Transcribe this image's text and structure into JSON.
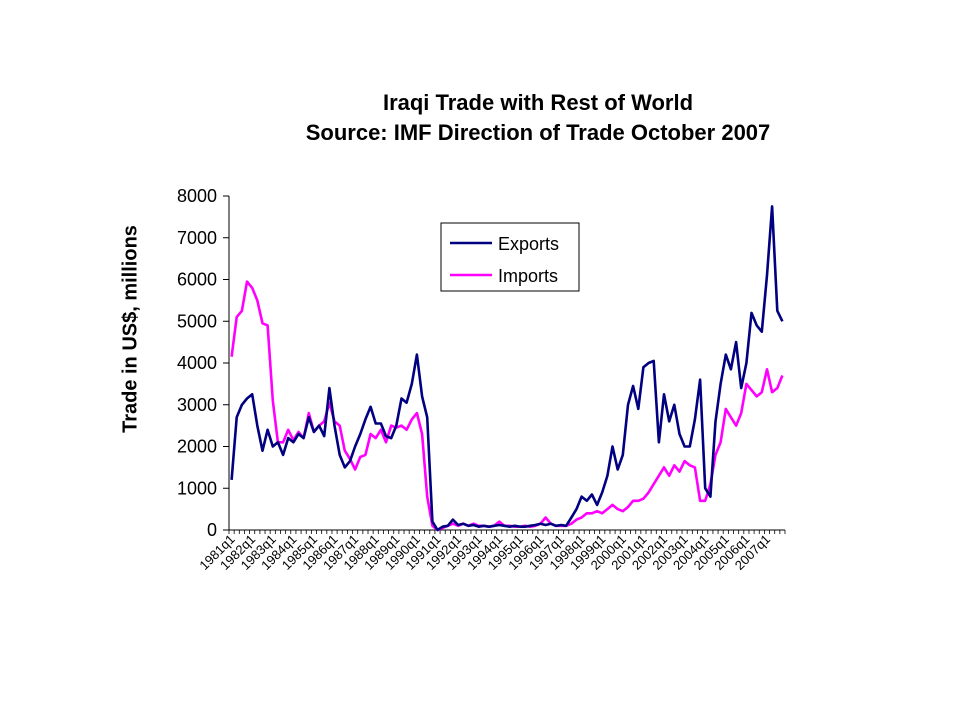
{
  "chart_data": {
    "type": "line",
    "title": "Iraqi Trade with Rest of World",
    "subtitle": "Source: IMF Direction of Trade October 2007",
    "xlabel": "",
    "ylabel": "Trade in US$, millions",
    "ylim": [
      0,
      8000
    ],
    "yticks": [
      0,
      1000,
      2000,
      3000,
      4000,
      5000,
      6000,
      7000,
      8000
    ],
    "xtick_labels": [
      "1981q1",
      "1982q1",
      "1983q1",
      "1984q1",
      "1985q1",
      "1986q1",
      "1987q1",
      "1988q1",
      "1989q1",
      "1990q1",
      "1991q1",
      "1992q1",
      "1993q1",
      "1994q1",
      "1995q1",
      "1996q1",
      "1997q1",
      "1998q1",
      "1999q1",
      "2000q1",
      "2001q1",
      "2002q1",
      "2003q1",
      "2004q1",
      "2005q1",
      "2006q1",
      "2007q1"
    ],
    "legend_position": "top-right inside plot",
    "grid": false,
    "series": [
      {
        "name": "Exports",
        "color": "#000080",
        "values": [
          1200,
          2700,
          3000,
          3150,
          3250,
          2500,
          1900,
          2400,
          2000,
          2100,
          1800,
          2200,
          2100,
          2300,
          2200,
          2700,
          2350,
          2500,
          2250,
          3400,
          2500,
          1800,
          1500,
          1650,
          2000,
          2300,
          2650,
          2950,
          2550,
          2550,
          2250,
          2200,
          2500,
          3150,
          3050,
          3500,
          4200,
          3200,
          2700,
          200,
          0,
          80,
          100,
          250,
          120,
          150,
          100,
          120,
          80,
          100,
          80,
          100,
          120,
          100,
          80,
          100,
          80,
          80,
          100,
          120,
          150,
          120,
          150,
          100,
          120,
          100,
          300,
          500,
          800,
          700,
          850,
          600,
          900,
          1300,
          2000,
          1450,
          1800,
          3000,
          3450,
          2900,
          3900,
          4000,
          4050,
          2100,
          3250,
          2600,
          3000,
          2300,
          2000,
          2000,
          2650,
          3600,
          1000,
          800,
          2600,
          3500,
          4200,
          3850,
          4500,
          3400,
          4000,
          5200,
          4900,
          4750,
          6100,
          7750,
          5250,
          5000
        ]
      },
      {
        "name": "Imports",
        "color": "#ff00ff",
        "values": [
          4150,
          5100,
          5250,
          5950,
          5800,
          5500,
          4950,
          4900,
          3100,
          2100,
          2100,
          2400,
          2150,
          2350,
          2200,
          2800,
          2350,
          2500,
          2600,
          3050,
          2600,
          2500,
          1900,
          1700,
          1450,
          1750,
          1800,
          2300,
          2200,
          2400,
          2100,
          2500,
          2450,
          2500,
          2400,
          2650,
          2800,
          2300,
          800,
          100,
          0,
          50,
          100,
          150,
          100,
          150,
          100,
          150,
          100,
          100,
          80,
          100,
          200,
          100,
          100,
          80,
          80,
          100,
          80,
          100,
          150,
          300,
          150,
          100,
          100,
          100,
          150,
          250,
          300,
          400,
          400,
          450,
          400,
          500,
          600,
          500,
          450,
          550,
          700,
          700,
          750,
          900,
          1100,
          1300,
          1500,
          1300,
          1550,
          1400,
          1650,
          1550,
          1500,
          700,
          700,
          1100,
          1800,
          2100,
          2900,
          2700,
          2500,
          2800,
          3500,
          3350,
          3200,
          3300,
          3850,
          3300,
          3400,
          3700
        ]
      }
    ]
  }
}
